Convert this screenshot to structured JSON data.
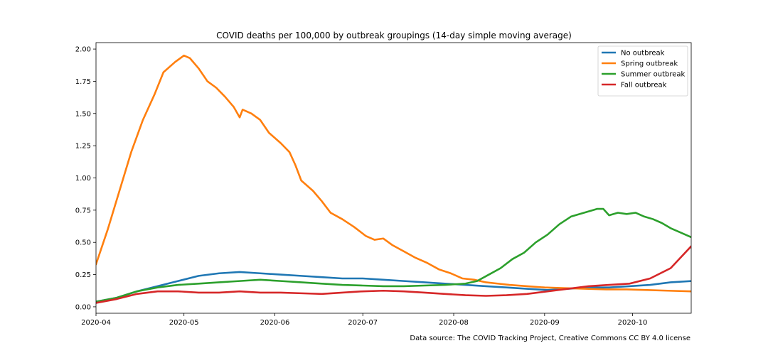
{
  "chart_data": {
    "type": "line",
    "title": "COVID deaths per 100,000 by outbreak groupings (14-day simple moving average)",
    "source_note": "Data source: The COVID Tracking Project, Creative Commons CC BY 4.0 license",
    "xlabel": "",
    "ylabel": "",
    "xlim": [
      "2020-04-01",
      "2020-10-21"
    ],
    "ylim": [
      -0.05,
      2.05
    ],
    "x_ticks": [
      "2020-04",
      "2020-05",
      "2020-06",
      "2020-07",
      "2020-08",
      "2020-09",
      "2020-10"
    ],
    "y_ticks": [
      "0.00",
      "0.25",
      "0.50",
      "0.75",
      "1.00",
      "1.25",
      "1.50",
      "1.75",
      "2.00"
    ],
    "grid": false,
    "legend_position": "top-right",
    "series": [
      {
        "name": "No outbreak",
        "color": "#1f77b4",
        "points": [
          [
            "2020-04-01",
            0.04
          ],
          [
            "2020-04-08",
            0.07
          ],
          [
            "2020-04-15",
            0.12
          ],
          [
            "2020-04-22",
            0.16
          ],
          [
            "2020-04-29",
            0.2
          ],
          [
            "2020-05-06",
            0.24
          ],
          [
            "2020-05-13",
            0.26
          ],
          [
            "2020-05-20",
            0.27
          ],
          [
            "2020-05-27",
            0.26
          ],
          [
            "2020-06-03",
            0.25
          ],
          [
            "2020-06-10",
            0.24
          ],
          [
            "2020-06-17",
            0.23
          ],
          [
            "2020-06-24",
            0.22
          ],
          [
            "2020-07-01",
            0.22
          ],
          [
            "2020-07-08",
            0.21
          ],
          [
            "2020-07-15",
            0.2
          ],
          [
            "2020-07-22",
            0.19
          ],
          [
            "2020-07-29",
            0.18
          ],
          [
            "2020-08-05",
            0.17
          ],
          [
            "2020-08-12",
            0.16
          ],
          [
            "2020-08-19",
            0.15
          ],
          [
            "2020-08-26",
            0.14
          ],
          [
            "2020-09-02",
            0.13
          ],
          [
            "2020-09-09",
            0.14
          ],
          [
            "2020-09-16",
            0.15
          ],
          [
            "2020-09-23",
            0.15
          ],
          [
            "2020-09-30",
            0.16
          ],
          [
            "2020-10-07",
            0.17
          ],
          [
            "2020-10-14",
            0.19
          ],
          [
            "2020-10-21",
            0.2
          ]
        ]
      },
      {
        "name": "Spring outbreak",
        "color": "#ff7f0e",
        "points": [
          [
            "2020-04-01",
            0.33
          ],
          [
            "2020-04-05",
            0.6
          ],
          [
            "2020-04-09",
            0.9
          ],
          [
            "2020-04-13",
            1.2
          ],
          [
            "2020-04-17",
            1.45
          ],
          [
            "2020-04-21",
            1.65
          ],
          [
            "2020-04-24",
            1.82
          ],
          [
            "2020-04-28",
            1.9
          ],
          [
            "2020-05-01",
            1.95
          ],
          [
            "2020-05-03",
            1.93
          ],
          [
            "2020-05-06",
            1.85
          ],
          [
            "2020-05-09",
            1.75
          ],
          [
            "2020-05-12",
            1.7
          ],
          [
            "2020-05-15",
            1.63
          ],
          [
            "2020-05-18",
            1.55
          ],
          [
            "2020-05-20",
            1.47
          ],
          [
            "2020-05-21",
            1.53
          ],
          [
            "2020-05-24",
            1.5
          ],
          [
            "2020-05-27",
            1.45
          ],
          [
            "2020-05-30",
            1.35
          ],
          [
            "2020-06-03",
            1.27
          ],
          [
            "2020-06-06",
            1.2
          ],
          [
            "2020-06-08",
            1.1
          ],
          [
            "2020-06-10",
            0.98
          ],
          [
            "2020-06-14",
            0.9
          ],
          [
            "2020-06-17",
            0.82
          ],
          [
            "2020-06-20",
            0.73
          ],
          [
            "2020-06-24",
            0.68
          ],
          [
            "2020-06-28",
            0.62
          ],
          [
            "2020-07-02",
            0.55
          ],
          [
            "2020-07-05",
            0.52
          ],
          [
            "2020-07-08",
            0.53
          ],
          [
            "2020-07-11",
            0.48
          ],
          [
            "2020-07-15",
            0.43
          ],
          [
            "2020-07-19",
            0.38
          ],
          [
            "2020-07-23",
            0.34
          ],
          [
            "2020-07-27",
            0.29
          ],
          [
            "2020-07-31",
            0.26
          ],
          [
            "2020-08-04",
            0.22
          ],
          [
            "2020-08-08",
            0.21
          ],
          [
            "2020-08-12",
            0.19
          ],
          [
            "2020-08-16",
            0.18
          ],
          [
            "2020-08-20",
            0.17
          ],
          [
            "2020-08-26",
            0.16
          ],
          [
            "2020-09-01",
            0.15
          ],
          [
            "2020-09-08",
            0.145
          ],
          [
            "2020-09-15",
            0.14
          ],
          [
            "2020-09-22",
            0.135
          ],
          [
            "2020-09-29",
            0.135
          ],
          [
            "2020-10-06",
            0.13
          ],
          [
            "2020-10-13",
            0.125
          ],
          [
            "2020-10-21",
            0.12
          ]
        ]
      },
      {
        "name": "Summer outbreak",
        "color": "#2ca02c",
        "points": [
          [
            "2020-04-01",
            0.04
          ],
          [
            "2020-04-08",
            0.07
          ],
          [
            "2020-04-15",
            0.12
          ],
          [
            "2020-04-22",
            0.15
          ],
          [
            "2020-04-29",
            0.17
          ],
          [
            "2020-05-06",
            0.18
          ],
          [
            "2020-05-13",
            0.19
          ],
          [
            "2020-05-20",
            0.2
          ],
          [
            "2020-05-27",
            0.21
          ],
          [
            "2020-06-03",
            0.2
          ],
          [
            "2020-06-10",
            0.19
          ],
          [
            "2020-06-17",
            0.18
          ],
          [
            "2020-06-24",
            0.17
          ],
          [
            "2020-07-01",
            0.165
          ],
          [
            "2020-07-08",
            0.16
          ],
          [
            "2020-07-15",
            0.16
          ],
          [
            "2020-07-22",
            0.165
          ],
          [
            "2020-07-29",
            0.17
          ],
          [
            "2020-08-05",
            0.18
          ],
          [
            "2020-08-09",
            0.2
          ],
          [
            "2020-08-13",
            0.25
          ],
          [
            "2020-08-17",
            0.3
          ],
          [
            "2020-08-21",
            0.37
          ],
          [
            "2020-08-25",
            0.42
          ],
          [
            "2020-08-29",
            0.5
          ],
          [
            "2020-09-02",
            0.56
          ],
          [
            "2020-09-06",
            0.64
          ],
          [
            "2020-09-10",
            0.7
          ],
          [
            "2020-09-13",
            0.72
          ],
          [
            "2020-09-16",
            0.74
          ],
          [
            "2020-09-19",
            0.76
          ],
          [
            "2020-09-21",
            0.76
          ],
          [
            "2020-09-23",
            0.71
          ],
          [
            "2020-09-26",
            0.73
          ],
          [
            "2020-09-29",
            0.72
          ],
          [
            "2020-10-02",
            0.73
          ],
          [
            "2020-10-05",
            0.7
          ],
          [
            "2020-10-08",
            0.68
          ],
          [
            "2020-10-11",
            0.65
          ],
          [
            "2020-10-14",
            0.61
          ],
          [
            "2020-10-17",
            0.58
          ],
          [
            "2020-10-21",
            0.54
          ]
        ]
      },
      {
        "name": "Fall outbreak",
        "color": "#d62728",
        "points": [
          [
            "2020-04-01",
            0.03
          ],
          [
            "2020-04-08",
            0.06
          ],
          [
            "2020-04-15",
            0.1
          ],
          [
            "2020-04-22",
            0.12
          ],
          [
            "2020-04-29",
            0.12
          ],
          [
            "2020-05-06",
            0.11
          ],
          [
            "2020-05-13",
            0.11
          ],
          [
            "2020-05-20",
            0.12
          ],
          [
            "2020-05-27",
            0.11
          ],
          [
            "2020-06-03",
            0.11
          ],
          [
            "2020-06-10",
            0.105
          ],
          [
            "2020-06-17",
            0.1
          ],
          [
            "2020-06-24",
            0.11
          ],
          [
            "2020-07-01",
            0.12
          ],
          [
            "2020-07-08",
            0.125
          ],
          [
            "2020-07-15",
            0.12
          ],
          [
            "2020-07-22",
            0.11
          ],
          [
            "2020-07-29",
            0.1
          ],
          [
            "2020-08-05",
            0.09
          ],
          [
            "2020-08-12",
            0.085
          ],
          [
            "2020-08-19",
            0.09
          ],
          [
            "2020-08-26",
            0.1
          ],
          [
            "2020-09-02",
            0.12
          ],
          [
            "2020-09-09",
            0.14
          ],
          [
            "2020-09-16",
            0.16
          ],
          [
            "2020-09-23",
            0.17
          ],
          [
            "2020-09-30",
            0.18
          ],
          [
            "2020-10-07",
            0.22
          ],
          [
            "2020-10-14",
            0.3
          ],
          [
            "2020-10-21",
            0.47
          ]
        ]
      }
    ]
  }
}
